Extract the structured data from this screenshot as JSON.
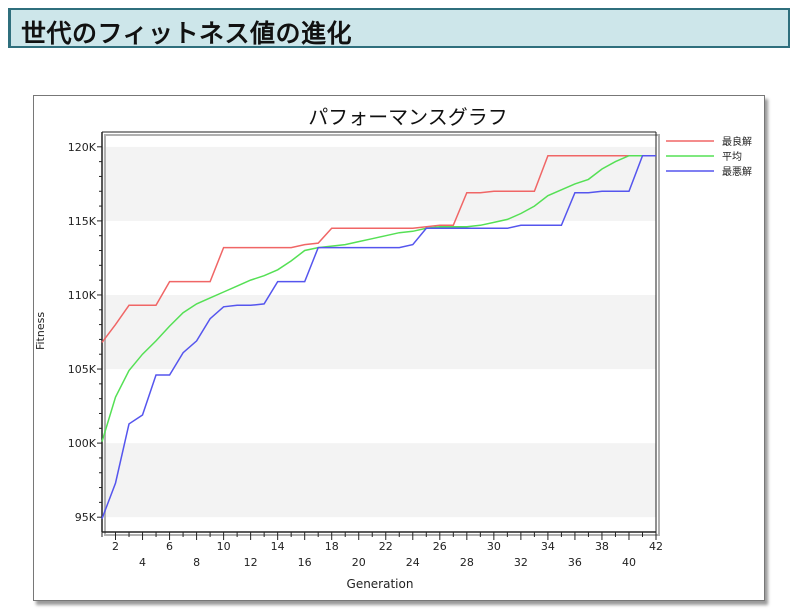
{
  "header": {
    "title": "世代のフィットネス値の進化"
  },
  "chart_data": {
    "type": "line",
    "title": "パフォーマンスグラフ",
    "xlabel": "Generation",
    "ylabel": "Fitness",
    "xlim": [
      1,
      42
    ],
    "ylim": [
      94000,
      121000
    ],
    "x_ticks": [
      2,
      4,
      6,
      8,
      10,
      12,
      14,
      16,
      18,
      20,
      22,
      24,
      26,
      28,
      30,
      32,
      34,
      36,
      38,
      40,
      42
    ],
    "y_ticks": [
      95000,
      100000,
      105000,
      110000,
      115000,
      120000
    ],
    "y_tick_labels": [
      "95K",
      "100K",
      "105K",
      "110K",
      "115K",
      "120K"
    ],
    "grid": true,
    "legend": "right",
    "x": [
      1,
      2,
      3,
      4,
      5,
      6,
      7,
      8,
      9,
      10,
      11,
      12,
      13,
      14,
      15,
      16,
      17,
      18,
      19,
      20,
      21,
      22,
      23,
      24,
      25,
      26,
      27,
      28,
      29,
      30,
      31,
      32,
      33,
      34,
      35,
      36,
      37,
      38,
      39,
      40,
      41,
      42
    ],
    "series": [
      {
        "name": "最良解",
        "color": "#f06666",
        "values": [
          106800,
          108000,
          109300,
          109300,
          109300,
          110900,
          110900,
          110900,
          110900,
          113200,
          113200,
          113200,
          113200,
          113200,
          113200,
          113400,
          113500,
          114500,
          114500,
          114500,
          114500,
          114500,
          114500,
          114500,
          114600,
          114700,
          114700,
          116900,
          116900,
          117000,
          117000,
          117000,
          117000,
          119400,
          119400,
          119400,
          119400,
          119400,
          119400,
          119400,
          119400,
          119400
        ]
      },
      {
        "name": "平均",
        "color": "#55e055",
        "values": [
          100100,
          103100,
          104900,
          106000,
          106900,
          107900,
          108800,
          109400,
          109800,
          110200,
          110600,
          111000,
          111300,
          111700,
          112300,
          113000,
          113200,
          113300,
          113400,
          113600,
          113800,
          114000,
          114200,
          114300,
          114500,
          114600,
          114600,
          114600,
          114700,
          114900,
          115100,
          115500,
          116000,
          116700,
          117100,
          117500,
          117800,
          118500,
          119000,
          119400,
          119400,
          119400
        ]
      },
      {
        "name": "最悪解",
        "color": "#5555ee",
        "values": [
          94900,
          97300,
          101300,
          101900,
          104600,
          104600,
          106100,
          106900,
          108400,
          109200,
          109300,
          109300,
          109400,
          110900,
          110900,
          110900,
          113200,
          113200,
          113200,
          113200,
          113200,
          113200,
          113200,
          113400,
          114500,
          114500,
          114500,
          114500,
          114500,
          114500,
          114500,
          114700,
          114700,
          114700,
          114700,
          116900,
          116900,
          117000,
          117000,
          117000,
          119400,
          119400
        ]
      }
    ]
  }
}
